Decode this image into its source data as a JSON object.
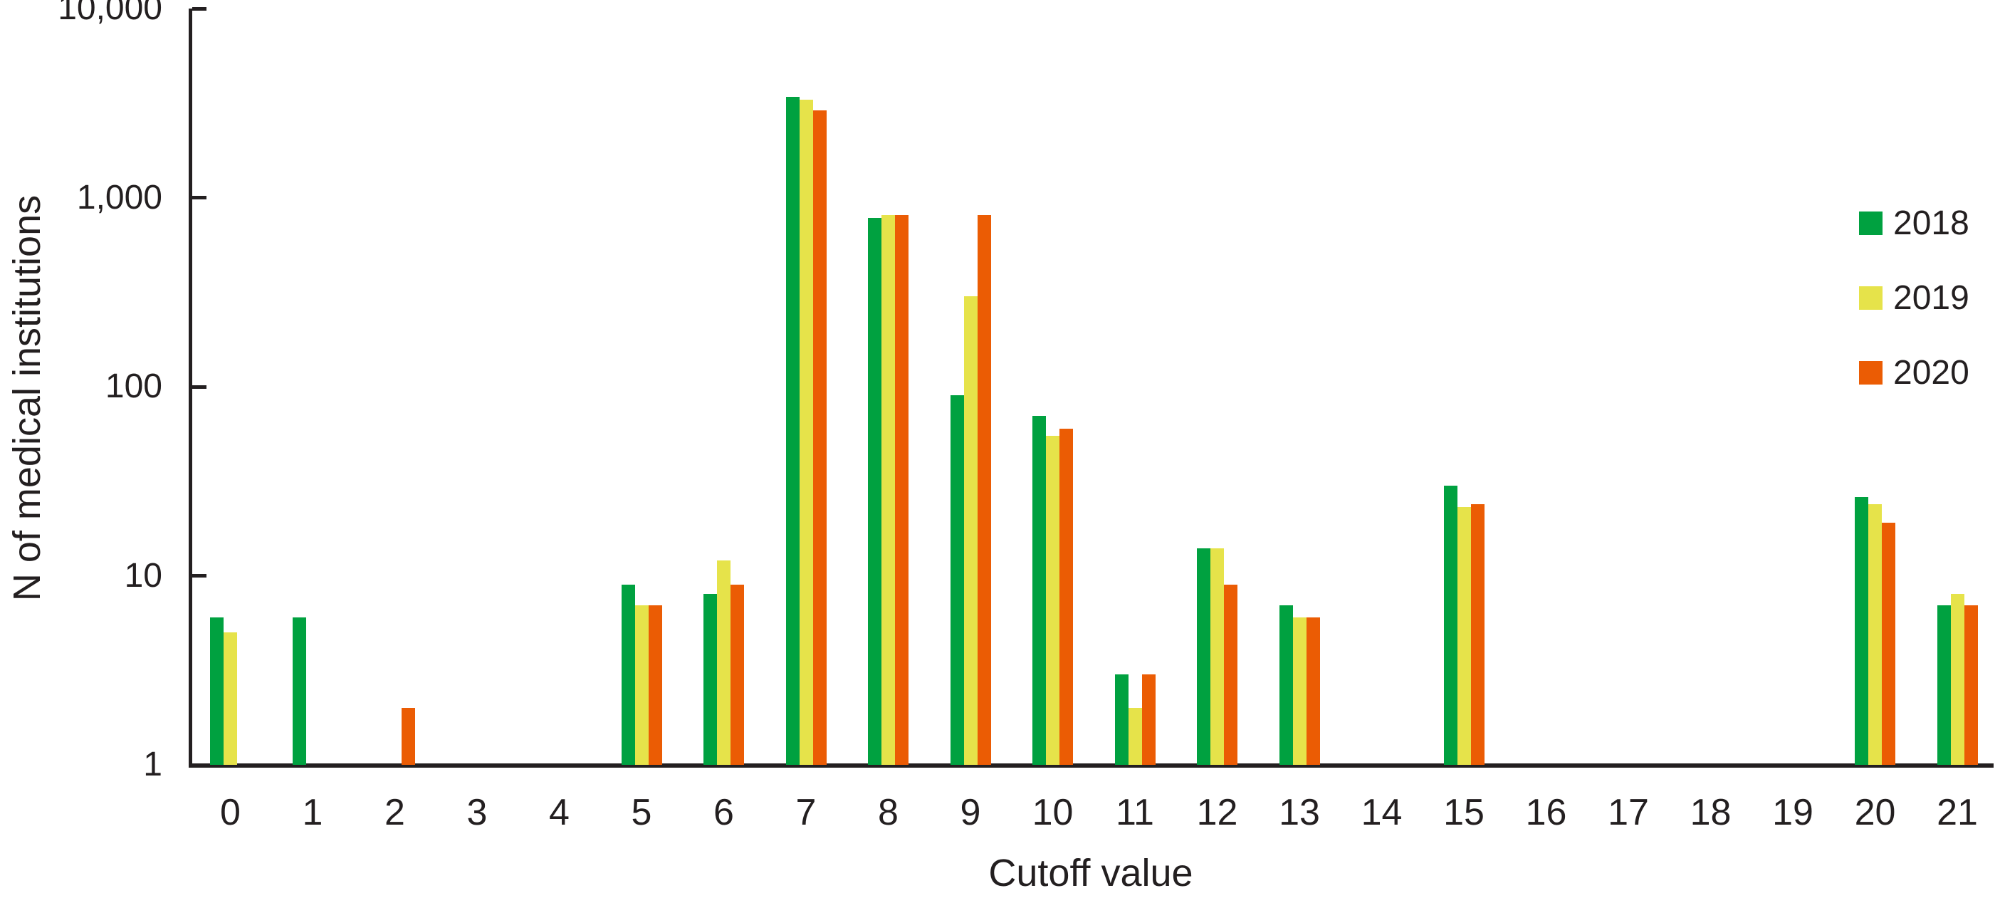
{
  "figure": {
    "kind": "journal-figure-bar-chart",
    "background_color": "#FFFFFF",
    "ink_color": "#231F20"
  },
  "chart_data": {
    "type": "bar",
    "title": "",
    "xlabel": "Cutoff value",
    "ylabel": "N of medical institutions",
    "y_scale": "log10",
    "ylim": [
      1,
      10000
    ],
    "grid": "off",
    "y_ticks": [
      {
        "value": 10000,
        "label": "10,000"
      },
      {
        "value": 1000,
        "label": "1,000"
      },
      {
        "value": 100,
        "label": "100"
      },
      {
        "value": 10,
        "label": "10"
      },
      {
        "value": 1,
        "label": "1"
      }
    ],
    "categories": [
      "0",
      "1",
      "2",
      "3",
      "4",
      "5",
      "6",
      "7",
      "8",
      "9",
      "10",
      "11",
      "12",
      "13",
      "14",
      "15",
      "16",
      "17",
      "18",
      "19",
      "20",
      "21"
    ],
    "series": [
      {
        "name": "2018",
        "color": "#00A140",
        "values": [
          6,
          6,
          null,
          null,
          null,
          9,
          8,
          3400,
          780,
          90,
          70,
          3,
          14,
          7,
          null,
          30,
          null,
          null,
          null,
          null,
          26,
          7
        ]
      },
      {
        "name": "2019",
        "color": "#E6E34A",
        "values": [
          5,
          null,
          null,
          null,
          null,
          7,
          12,
          3300,
          810,
          300,
          55,
          2,
          14,
          6,
          null,
          23,
          null,
          null,
          null,
          null,
          24,
          8
        ]
      },
      {
        "name": "2020",
        "color": "#EB5C04",
        "values": [
          null,
          null,
          2,
          null,
          null,
          7,
          9,
          2900,
          810,
          810,
          60,
          3,
          9,
          6,
          null,
          24,
          null,
          null,
          null,
          null,
          19,
          7
        ]
      }
    ],
    "legend_position": "top-right"
  }
}
